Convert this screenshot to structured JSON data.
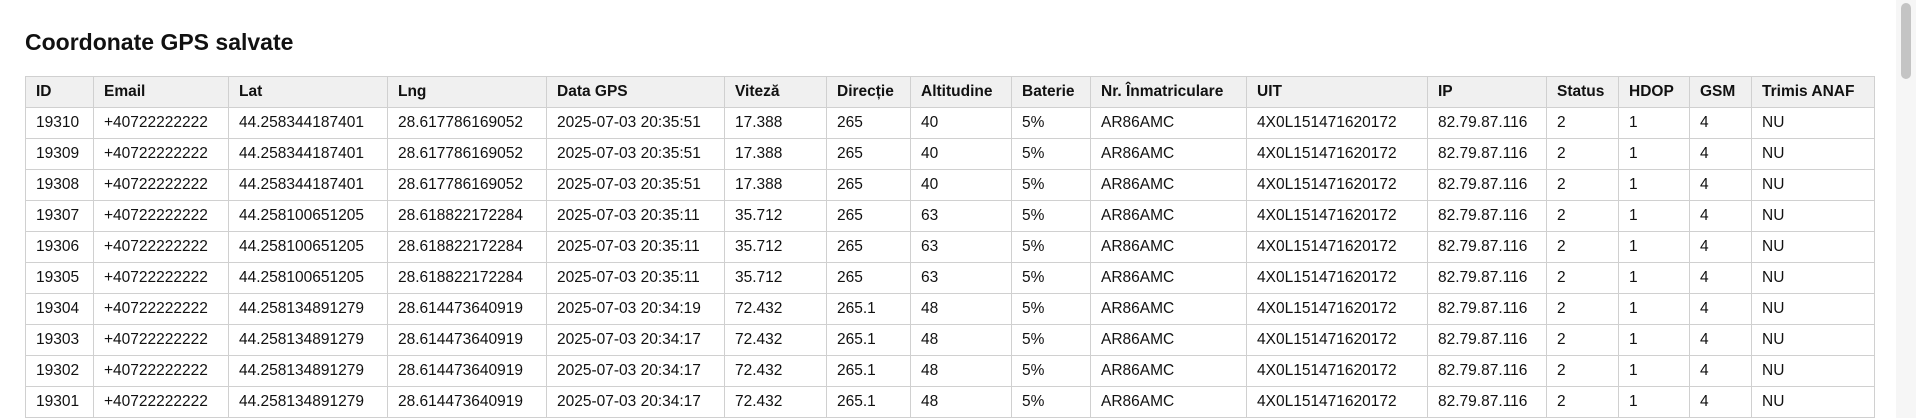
{
  "page": {
    "title": "Coordonate GPS salvate"
  },
  "table": {
    "columns": [
      "ID",
      "Email",
      "Lat",
      "Lng",
      "Data GPS",
      "Viteză",
      "Direcție",
      "Altitudine",
      "Baterie",
      "Nr. Înmatriculare",
      "UIT",
      "IP",
      "Status",
      "HDOP",
      "GSM",
      "Trimis ANAF"
    ],
    "rows": [
      [
        "19310",
        "+40722222222",
        "44.258344187401",
        "28.617786169052",
        "2025-07-03 20:35:51",
        "17.388",
        "265",
        "40",
        "5%",
        "AR86AMC",
        "4X0L151471620172",
        "82.79.87.116",
        "2",
        "1",
        "4",
        "NU"
      ],
      [
        "19309",
        "+40722222222",
        "44.258344187401",
        "28.617786169052",
        "2025-07-03 20:35:51",
        "17.388",
        "265",
        "40",
        "5%",
        "AR86AMC",
        "4X0L151471620172",
        "82.79.87.116",
        "2",
        "1",
        "4",
        "NU"
      ],
      [
        "19308",
        "+40722222222",
        "44.258344187401",
        "28.617786169052",
        "2025-07-03 20:35:51",
        "17.388",
        "265",
        "40",
        "5%",
        "AR86AMC",
        "4X0L151471620172",
        "82.79.87.116",
        "2",
        "1",
        "4",
        "NU"
      ],
      [
        "19307",
        "+40722222222",
        "44.258100651205",
        "28.618822172284",
        "2025-07-03 20:35:11",
        "35.712",
        "265",
        "63",
        "5%",
        "AR86AMC",
        "4X0L151471620172",
        "82.79.87.116",
        "2",
        "1",
        "4",
        "NU"
      ],
      [
        "19306",
        "+40722222222",
        "44.258100651205",
        "28.618822172284",
        "2025-07-03 20:35:11",
        "35.712",
        "265",
        "63",
        "5%",
        "AR86AMC",
        "4X0L151471620172",
        "82.79.87.116",
        "2",
        "1",
        "4",
        "NU"
      ],
      [
        "19305",
        "+40722222222",
        "44.258100651205",
        "28.618822172284",
        "2025-07-03 20:35:11",
        "35.712",
        "265",
        "63",
        "5%",
        "AR86AMC",
        "4X0L151471620172",
        "82.79.87.116",
        "2",
        "1",
        "4",
        "NU"
      ],
      [
        "19304",
        "+40722222222",
        "44.258134891279",
        "28.614473640919",
        "2025-07-03 20:34:19",
        "72.432",
        "265.1",
        "48",
        "5%",
        "AR86AMC",
        "4X0L151471620172",
        "82.79.87.116",
        "2",
        "1",
        "4",
        "NU"
      ],
      [
        "19303",
        "+40722222222",
        "44.258134891279",
        "28.614473640919",
        "2025-07-03 20:34:17",
        "72.432",
        "265.1",
        "48",
        "5%",
        "AR86AMC",
        "4X0L151471620172",
        "82.79.87.116",
        "2",
        "1",
        "4",
        "NU"
      ],
      [
        "19302",
        "+40722222222",
        "44.258134891279",
        "28.614473640919",
        "2025-07-03 20:34:17",
        "72.432",
        "265.1",
        "48",
        "5%",
        "AR86AMC",
        "4X0L151471620172",
        "82.79.87.116",
        "2",
        "1",
        "4",
        "NU"
      ],
      [
        "19301",
        "+40722222222",
        "44.258134891279",
        "28.614473640919",
        "2025-07-03 20:34:17",
        "72.432",
        "265.1",
        "48",
        "5%",
        "AR86AMC",
        "4X0L151471620172",
        "82.79.87.116",
        "2",
        "1",
        "4",
        "NU"
      ]
    ]
  }
}
